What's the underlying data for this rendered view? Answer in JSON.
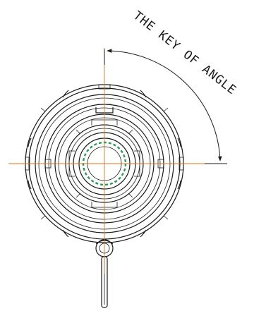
{
  "annotation": {
    "text": "THE KEY OF ANGLE"
  },
  "colors": {
    "linework": "#1a1a1a",
    "centerline": "#d4762a",
    "spline_teeth": "#2e9a5a",
    "background": "#ffffff"
  },
  "icons": [
    "dimension-arrowhead"
  ]
}
